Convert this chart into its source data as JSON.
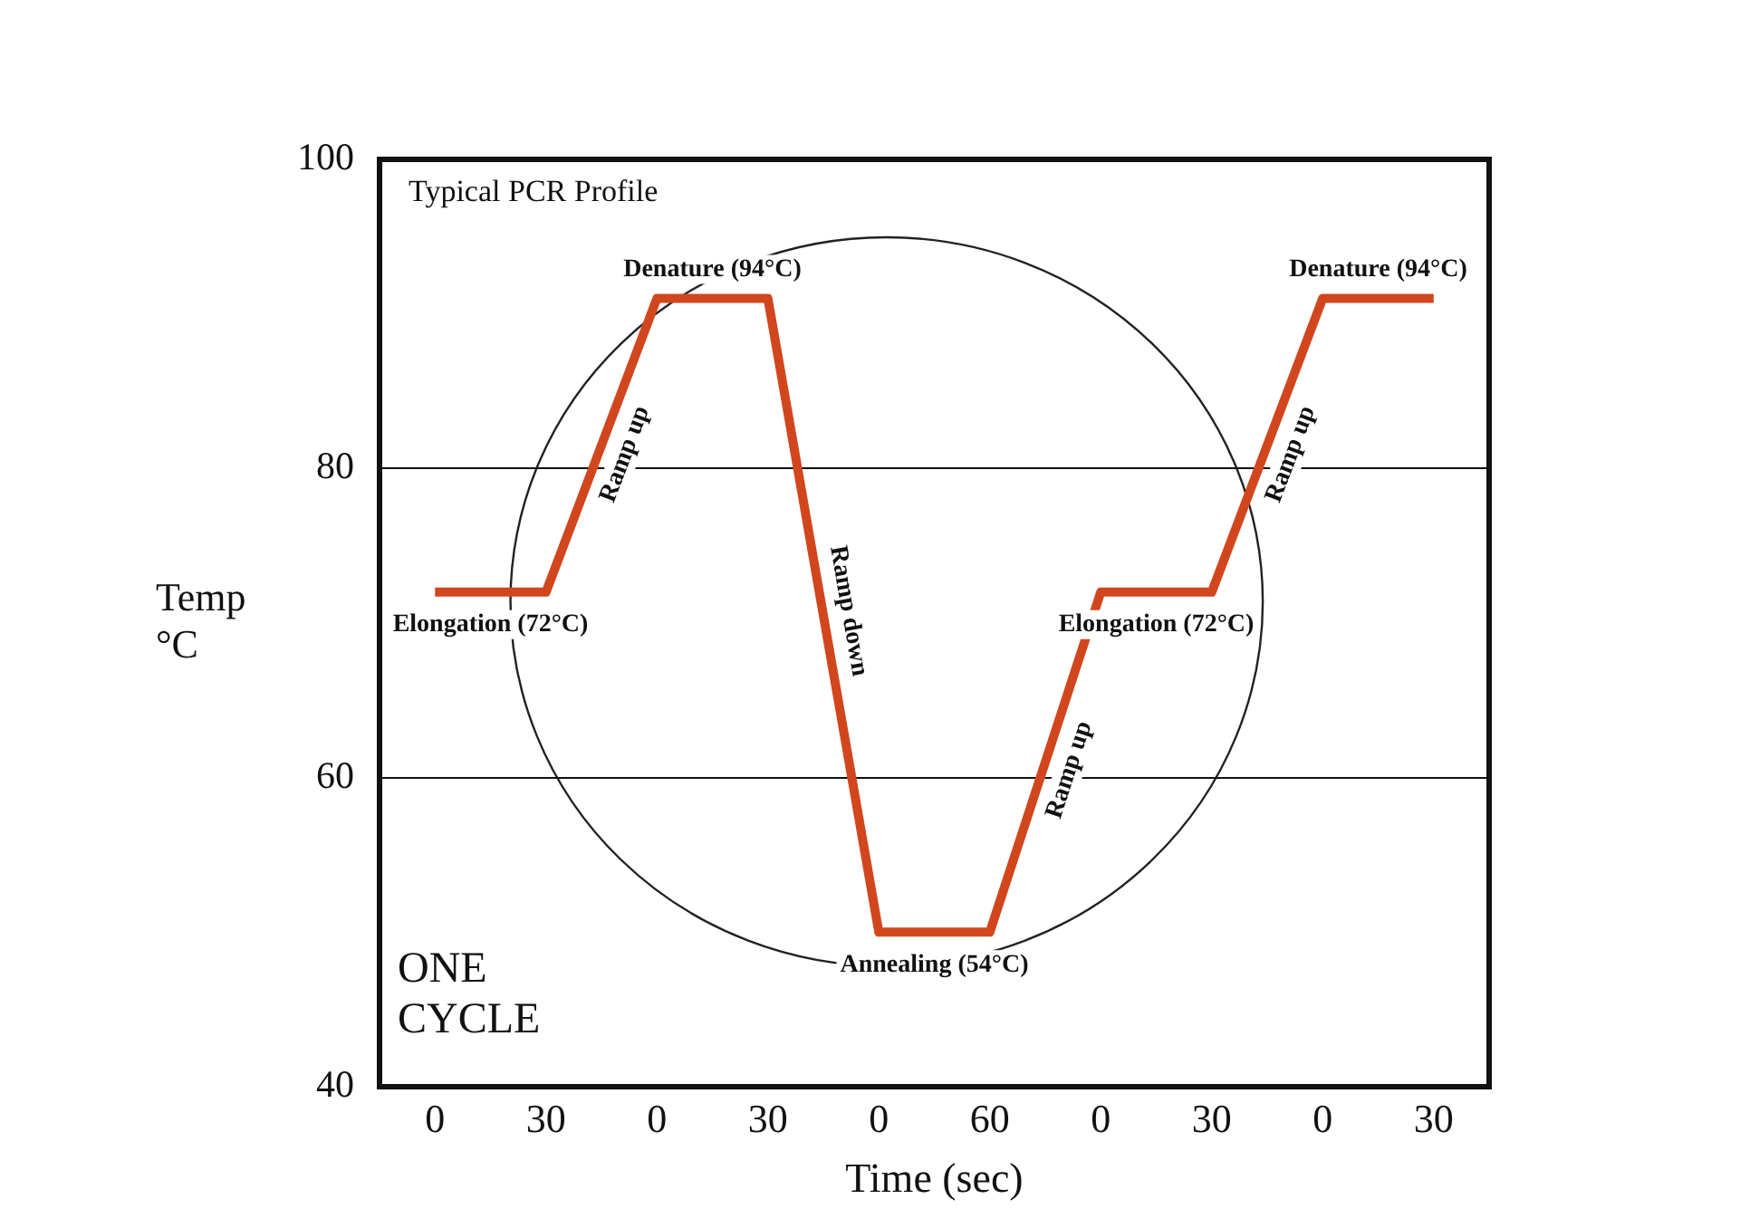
{
  "chart_data": {
    "type": "line",
    "title": "Typical PCR Profile",
    "xlabel": "Time (sec)",
    "ylabel": "Temp °C",
    "categories": [
      "0",
      "30",
      "0",
      "30",
      "0",
      "60",
      "0",
      "30",
      "0",
      "30"
    ],
    "series": [
      {
        "color": "#d2461e",
        "values": [
          72,
          72,
          91,
          91,
          50,
          50,
          72,
          72,
          91,
          91
        ]
      }
    ],
    "ylim": [
      40,
      100
    ],
    "yticks": [
      40,
      60,
      80,
      100
    ],
    "grid": "y",
    "legend": false,
    "marker": "none",
    "line_style": "solid",
    "annotations": [
      {
        "text": "Elongation (72°C)",
        "y": 72
      },
      "Ramp up",
      {
        "text": "Denature (94°C)",
        "y": 91
      },
      "Ramp down",
      {
        "text": "Annealing (54°C)",
        "y": 50
      },
      "Ramp up",
      {
        "text": "Elongation (72°C)",
        "y": 72
      },
      "Ramp up",
      {
        "text": "Denature (94°C)",
        "y": 91
      },
      "ONE CYCLE"
    ]
  }
}
